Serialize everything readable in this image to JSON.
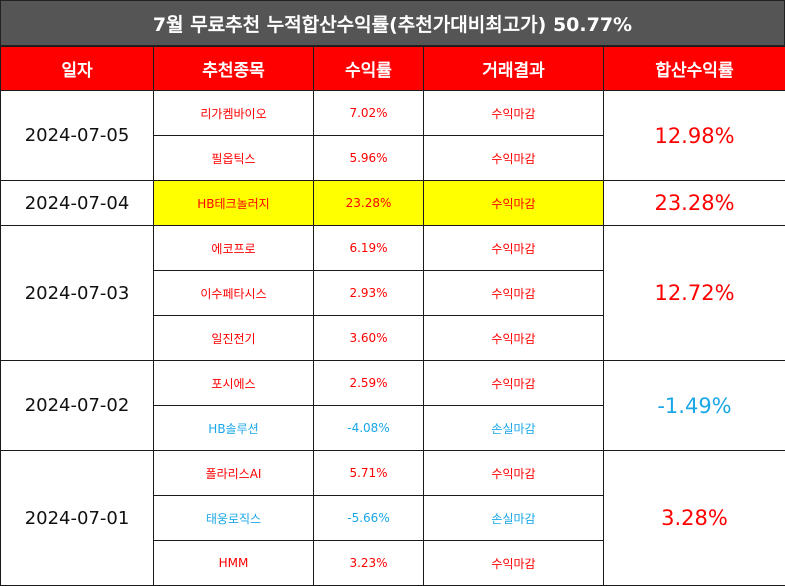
{
  "title": "7월 무료추천 누적합산수익률(추천가대비최고가) 50.77%",
  "headers": [
    "일자",
    "추천종목",
    "수익률",
    "거래결과",
    "합산수익률"
  ],
  "colors": {
    "header_bg": "#ff0000",
    "title_bg": "#555555",
    "positive": "#ff0000",
    "negative": "#1aa7e8",
    "highlight": "#ffff00"
  },
  "groups": [
    {
      "date": "2024-07-05",
      "total": "12.98%",
      "rows": [
        {
          "stock": "리가켐바이오",
          "return": "7.02%",
          "result": "수익마감"
        },
        {
          "stock": "필옵틱스",
          "return": "5.96%",
          "result": "수익마감"
        }
      ]
    },
    {
      "date": "2024-07-04",
      "total": "23.28%",
      "rows": [
        {
          "stock": "HB테크놀러지",
          "return": "23.28%",
          "result": "수익마감"
        }
      ]
    },
    {
      "date": "2024-07-03",
      "total": "12.72%",
      "rows": [
        {
          "stock": "에코프로",
          "return": "6.19%",
          "result": "수익마감"
        },
        {
          "stock": "이수페타시스",
          "return": "2.93%",
          "result": "수익마감"
        },
        {
          "stock": "일진전기",
          "return": "3.60%",
          "result": "수익마감"
        }
      ]
    },
    {
      "date": "2024-07-02",
      "total": "-1.49%",
      "rows": [
        {
          "stock": "포시에스",
          "return": "2.59%",
          "result": "수익마감"
        },
        {
          "stock": "HB솔루션",
          "return": "-4.08%",
          "result": "손실마감"
        }
      ]
    },
    {
      "date": "2024-07-01",
      "total": "3.28%",
      "rows": [
        {
          "stock": "폴라리스AI",
          "return": "5.71%",
          "result": "수익마감"
        },
        {
          "stock": "태웅로직스",
          "return": "-5.66%",
          "result": "손실마감"
        },
        {
          "stock": "HMM",
          "return": "3.23%",
          "result": "수익마감"
        }
      ]
    }
  ]
}
